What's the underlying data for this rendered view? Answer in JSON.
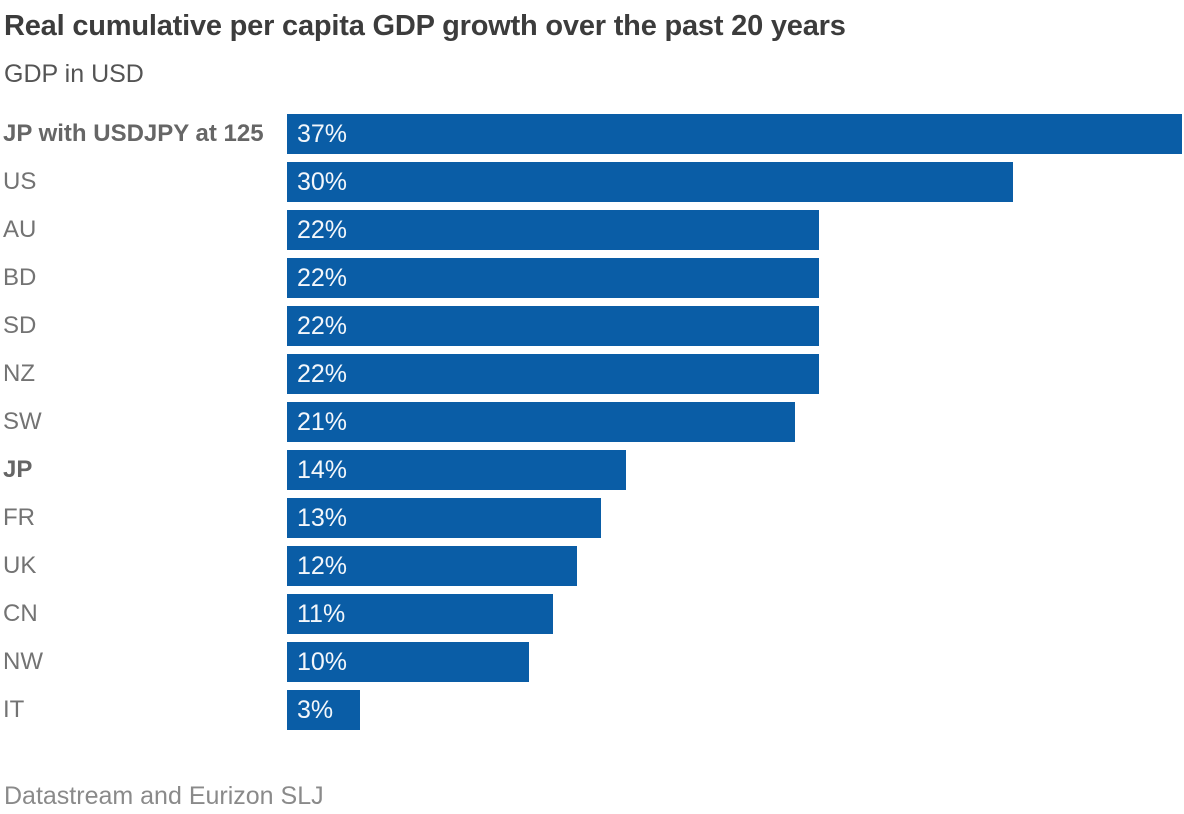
{
  "header": {
    "title": "Real cumulative per capita GDP growth over the past 20 years",
    "subtitle": "GDP in USD"
  },
  "source": "Datastream and Eurizon SLJ",
  "colors": {
    "bar": "#0a5da6",
    "title": "#3c3c3c",
    "subtitle": "#545454",
    "label": "#737373",
    "label_bold": "#666666",
    "value_text": "#f3f7fb",
    "source": "#8a8a8a"
  },
  "chart_data": {
    "type": "bar",
    "orientation": "horizontal",
    "title": "Real cumulative per capita GDP growth over the past 20 years",
    "subtitle": "GDP in USD",
    "source": "Datastream and Eurizon SLJ",
    "xlabel": "",
    "ylabel": "",
    "xlim": [
      0,
      37
    ],
    "grid": false,
    "legend": false,
    "categories": [
      "JP with USDJPY at 125",
      "US",
      "AU",
      "BD",
      "SD",
      "NZ",
      "SW",
      "JP",
      "FR",
      "UK",
      "CN",
      "NW",
      "IT"
    ],
    "values": [
      37,
      30,
      22,
      22,
      22,
      22,
      21,
      14,
      13,
      12,
      11,
      10,
      3
    ],
    "value_labels": [
      "37%",
      "30%",
      "22%",
      "22%",
      "22%",
      "22%",
      "21%",
      "14%",
      "13%",
      "12%",
      "11%",
      "10%",
      "3%"
    ],
    "bold_categories": [
      "JP with USDJPY at 125",
      "JP"
    ]
  }
}
